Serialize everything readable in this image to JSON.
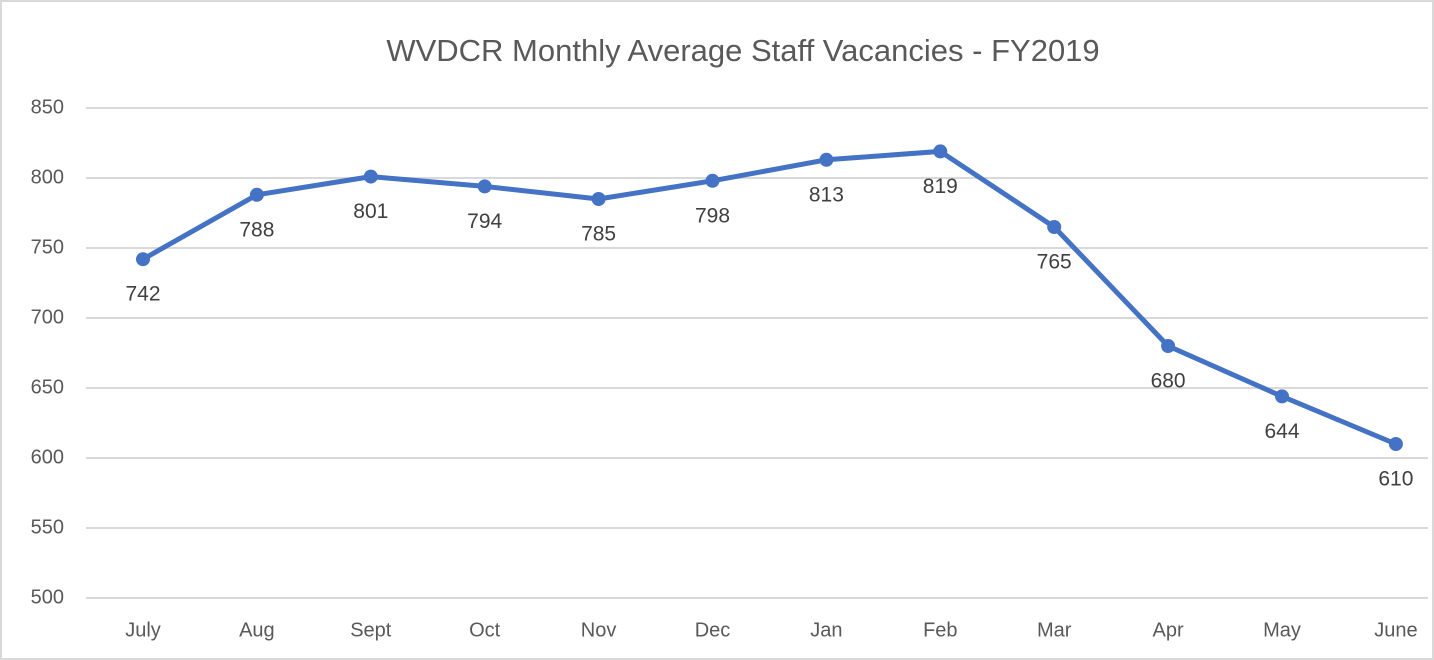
{
  "chart_data": {
    "type": "line",
    "title": "WVDCR Monthly Average Staff Vacancies - FY2019",
    "categories": [
      "July",
      "Aug",
      "Sept",
      "Oct",
      "Nov",
      "Dec",
      "Jan",
      "Feb",
      "Mar",
      "Apr",
      "May",
      "June"
    ],
    "series": [
      {
        "name": "Staff Vacancies",
        "color": "#4472c4",
        "values": [
          742,
          788,
          801,
          794,
          785,
          798,
          813,
          819,
          765,
          680,
          644,
          610
        ]
      }
    ],
    "ylim": [
      500,
      850
    ],
    "yticks": [
      500,
      550,
      600,
      650,
      700,
      750,
      800,
      850
    ],
    "grid": true,
    "data_labels": true
  }
}
